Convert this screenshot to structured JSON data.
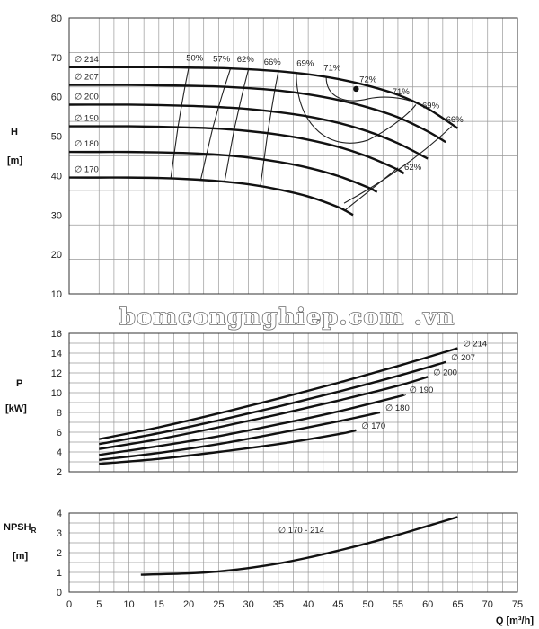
{
  "watermark": "bomcongnghiep.com .vn",
  "x_axis": {
    "label": "Q [m³/h]",
    "ticks": [
      0,
      5,
      10,
      15,
      20,
      25,
      30,
      35,
      40,
      45,
      50,
      55,
      60,
      65,
      70,
      75
    ]
  },
  "chart_data": [
    {
      "type": "line",
      "ylabel": "H",
      "yunit": "[m]",
      "ylim": [
        10,
        80
      ],
      "yticks": [
        10,
        20,
        30,
        40,
        50,
        60,
        70,
        80
      ],
      "xlim": [
        0,
        75
      ],
      "grid": true,
      "series": [
        {
          "name": "∅ 214",
          "x": [
            0,
            5,
            10,
            15,
            20,
            25,
            30,
            35,
            40,
            45,
            50,
            55,
            60,
            65
          ],
          "y": [
            67.5,
            67.5,
            67.5,
            67.5,
            67.4,
            67.3,
            67.0,
            66.5,
            65.7,
            64.5,
            62.8,
            60.5,
            57.0,
            52.0
          ]
        },
        {
          "name": "∅ 207",
          "x": [
            0,
            5,
            10,
            15,
            20,
            25,
            30,
            35,
            40,
            45,
            50,
            55,
            60,
            63
          ],
          "y": [
            63.0,
            63.0,
            63.0,
            62.9,
            62.8,
            62.6,
            62.2,
            61.6,
            60.6,
            59.2,
            57.3,
            54.8,
            51.2,
            48.5
          ]
        },
        {
          "name": "∅ 200",
          "x": [
            0,
            5,
            10,
            15,
            20,
            25,
            30,
            35,
            40,
            45,
            50,
            55,
            60
          ],
          "y": [
            58.0,
            58.0,
            58.0,
            57.9,
            57.7,
            57.4,
            56.9,
            56.1,
            55.0,
            53.4,
            51.2,
            48.2,
            44.3
          ]
        },
        {
          "name": "∅ 190",
          "x": [
            0,
            5,
            10,
            15,
            20,
            25,
            30,
            35,
            40,
            45,
            50,
            55,
            56
          ],
          "y": [
            52.5,
            52.5,
            52.5,
            52.4,
            52.2,
            51.9,
            51.3,
            50.4,
            49.1,
            47.3,
            44.8,
            41.5,
            40.5
          ]
        },
        {
          "name": "∅ 180",
          "x": [
            0,
            5,
            10,
            15,
            20,
            25,
            30,
            35,
            40,
            45,
            50,
            51.5
          ],
          "y": [
            46.0,
            46.0,
            46.0,
            45.9,
            45.7,
            45.3,
            44.6,
            43.5,
            42.0,
            39.9,
            37.0,
            35.8
          ]
        },
        {
          "name": "∅ 170",
          "x": [
            0,
            5,
            10,
            15,
            20,
            25,
            30,
            35,
            40,
            45,
            47.5
          ],
          "y": [
            39.5,
            39.5,
            39.5,
            39.4,
            39.1,
            38.6,
            37.8,
            36.5,
            34.7,
            32.0,
            30.0
          ]
        }
      ],
      "efficiency_labels": [
        "50%",
        "57%",
        "62%",
        "66%",
        "69%",
        "71%",
        "72%",
        "71%",
        "69%",
        "66%",
        "62%"
      ],
      "bep_marker": {
        "x": 48,
        "y": 62.0
      }
    },
    {
      "type": "line",
      "ylabel": "P",
      "yunit": "[kW]",
      "ylim": [
        2,
        16
      ],
      "yticks": [
        2,
        4,
        6,
        8,
        10,
        12,
        14,
        16
      ],
      "xlim": [
        0,
        75
      ],
      "grid": true,
      "series": [
        {
          "name": "∅ 214",
          "x": [
            5,
            15,
            25,
            35,
            45,
            55,
            65
          ],
          "y": [
            5.3,
            6.5,
            7.9,
            9.4,
            11.0,
            12.7,
            14.5
          ]
        },
        {
          "name": "∅ 207",
          "x": [
            5,
            15,
            25,
            35,
            45,
            55,
            63
          ],
          "y": [
            4.8,
            5.9,
            7.2,
            8.6,
            10.1,
            11.7,
            13.1
          ]
        },
        {
          "name": "∅ 200",
          "x": [
            5,
            15,
            25,
            35,
            45,
            55,
            60
          ],
          "y": [
            4.3,
            5.3,
            6.5,
            7.8,
            9.2,
            10.7,
            11.6
          ]
        },
        {
          "name": "∅ 190",
          "x": [
            5,
            15,
            25,
            35,
            45,
            55,
            56
          ],
          "y": [
            3.7,
            4.6,
            5.6,
            6.8,
            8.1,
            9.6,
            9.8
          ]
        },
        {
          "name": "∅ 180",
          "x": [
            5,
            15,
            25,
            35,
            45,
            52
          ],
          "y": [
            3.2,
            3.9,
            4.8,
            5.9,
            7.1,
            8.0
          ]
        },
        {
          "name": "∅ 170",
          "x": [
            5,
            15,
            25,
            35,
            45,
            48
          ],
          "y": [
            2.8,
            3.3,
            4.0,
            4.8,
            5.8,
            6.2
          ]
        }
      ]
    },
    {
      "type": "line",
      "ylabel": "NPSH",
      "ylabel_sub": "R",
      "yunit": "[m]",
      "ylim": [
        0,
        4
      ],
      "yticks": [
        0,
        1,
        2,
        3,
        4
      ],
      "xlim": [
        0,
        75
      ],
      "grid": true,
      "series": [
        {
          "name": "∅ 170 - 214",
          "x": [
            12,
            20,
            25,
            30,
            35,
            40,
            45,
            50,
            55,
            60,
            65
          ],
          "y": [
            0.88,
            0.95,
            1.05,
            1.22,
            1.45,
            1.75,
            2.1,
            2.48,
            2.9,
            3.35,
            3.8
          ]
        }
      ]
    }
  ]
}
